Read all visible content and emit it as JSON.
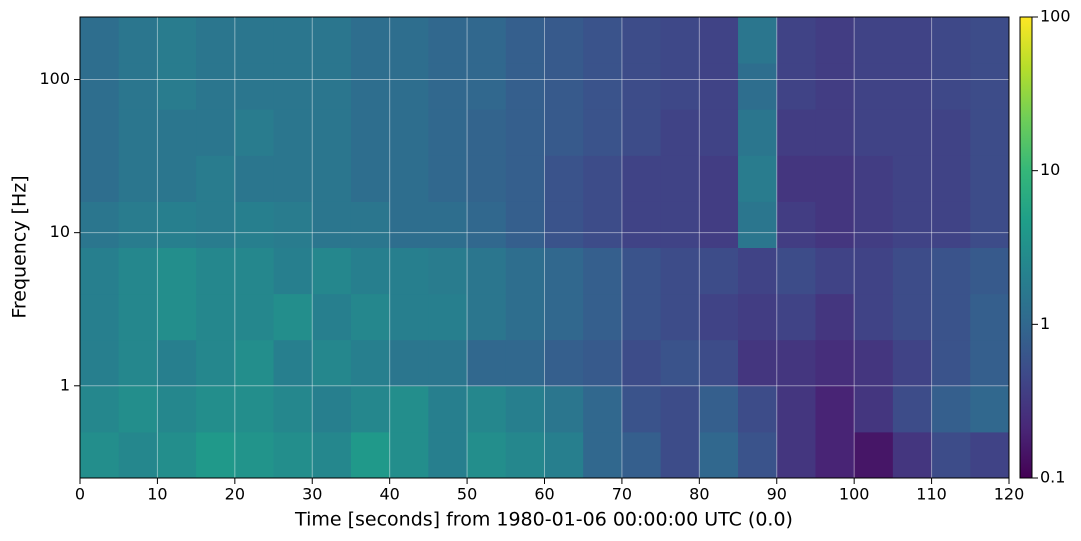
{
  "chart_data": {
    "type": "heatmap",
    "xlabel": "Time [seconds] from 1980-01-06 00:00:00 UTC (0.0)",
    "ylabel": "Frequency [Hz]",
    "xlim": [
      0,
      120
    ],
    "xticks": [
      0,
      10,
      20,
      30,
      40,
      50,
      60,
      70,
      80,
      90,
      100,
      110,
      120
    ],
    "ylim": [
      0.25,
      256
    ],
    "yticks": [
      1,
      10,
      100
    ],
    "ylog": true,
    "grid": true,
    "colormap": "viridis",
    "colorbar": {
      "lim": [
        0.1,
        100
      ],
      "ticks": [
        0.1,
        1,
        10,
        100
      ],
      "log": true
    },
    "x_edges": [
      0,
      5,
      10,
      15,
      20,
      25,
      30,
      35,
      40,
      45,
      50,
      55,
      60,
      65,
      70,
      75,
      80,
      85,
      90,
      95,
      100,
      105,
      110,
      115,
      120
    ],
    "y_edges": [
      0.25,
      0.5,
      1,
      2,
      4,
      8,
      16,
      32,
      64,
      128,
      256
    ],
    "z": [
      [
        3,
        2.5,
        3,
        4,
        3.5,
        3,
        2.5,
        4,
        3,
        2,
        3,
        2.5,
        2,
        1,
        0.8,
        0.5,
        1,
        0.6,
        0.3,
        0.2,
        0.15,
        0.3,
        0.5,
        0.4
      ],
      [
        2.5,
        3,
        2.5,
        3,
        3,
        2.5,
        2,
        2.5,
        3,
        2,
        2.5,
        2,
        1.5,
        1,
        0.6,
        0.5,
        0.8,
        0.5,
        0.3,
        0.2,
        0.3,
        0.5,
        0.8,
        1
      ],
      [
        2,
        2.5,
        2,
        2.5,
        3,
        2,
        2.5,
        2,
        1.5,
        1.5,
        1,
        1,
        0.8,
        0.7,
        0.5,
        0.6,
        0.5,
        0.3,
        0.3,
        0.25,
        0.3,
        0.4,
        0.6,
        0.8
      ],
      [
        2,
        2.5,
        3,
        2.5,
        2.5,
        3,
        2,
        2.5,
        2,
        2,
        1.5,
        1.2,
        1,
        0.8,
        0.6,
        0.5,
        0.4,
        0.35,
        0.4,
        0.3,
        0.4,
        0.5,
        0.6,
        0.8
      ],
      [
        2,
        2.5,
        3,
        2.5,
        2.5,
        2,
        2.5,
        2,
        2,
        1.8,
        1.5,
        1.2,
        1,
        0.8,
        0.6,
        0.5,
        0.5,
        0.4,
        0.5,
        0.4,
        0.4,
        0.5,
        0.6,
        0.7
      ],
      [
        1.5,
        1.8,
        2,
        1.8,
        2,
        1.8,
        1.5,
        1.5,
        1.2,
        1.2,
        1,
        0.8,
        0.6,
        0.5,
        0.4,
        0.4,
        0.35,
        1.5,
        0.35,
        0.3,
        0.35,
        0.4,
        0.4,
        0.5
      ],
      [
        1.2,
        1.5,
        1.5,
        1.8,
        1.5,
        1.5,
        1.5,
        1.2,
        1.2,
        1,
        0.9,
        0.8,
        0.6,
        0.5,
        0.4,
        0.4,
        0.35,
        1.8,
        0.3,
        0.3,
        0.35,
        0.4,
        0.4,
        0.5
      ],
      [
        1.2,
        1.5,
        1.5,
        1.5,
        1.8,
        1.5,
        1.5,
        1.2,
        1.2,
        1,
        0.9,
        0.8,
        0.7,
        0.6,
        0.5,
        0.4,
        0.4,
        1.5,
        0.35,
        0.35,
        0.4,
        0.4,
        0.4,
        0.5
      ],
      [
        1.2,
        1.5,
        1.8,
        1.5,
        1.5,
        1.5,
        1.5,
        1.2,
        1.2,
        1,
        1,
        0.8,
        0.7,
        0.6,
        0.5,
        0.45,
        0.4,
        1.2,
        0.4,
        0.35,
        0.4,
        0.4,
        0.45,
        0.5
      ],
      [
        1.2,
        1.5,
        1.8,
        1.5,
        1.5,
        1.5,
        1.5,
        1.2,
        1.2,
        1,
        1,
        0.8,
        0.7,
        0.6,
        0.5,
        0.45,
        0.4,
        1.5,
        0.4,
        0.35,
        0.4,
        0.4,
        0.45,
        0.5
      ]
    ]
  }
}
